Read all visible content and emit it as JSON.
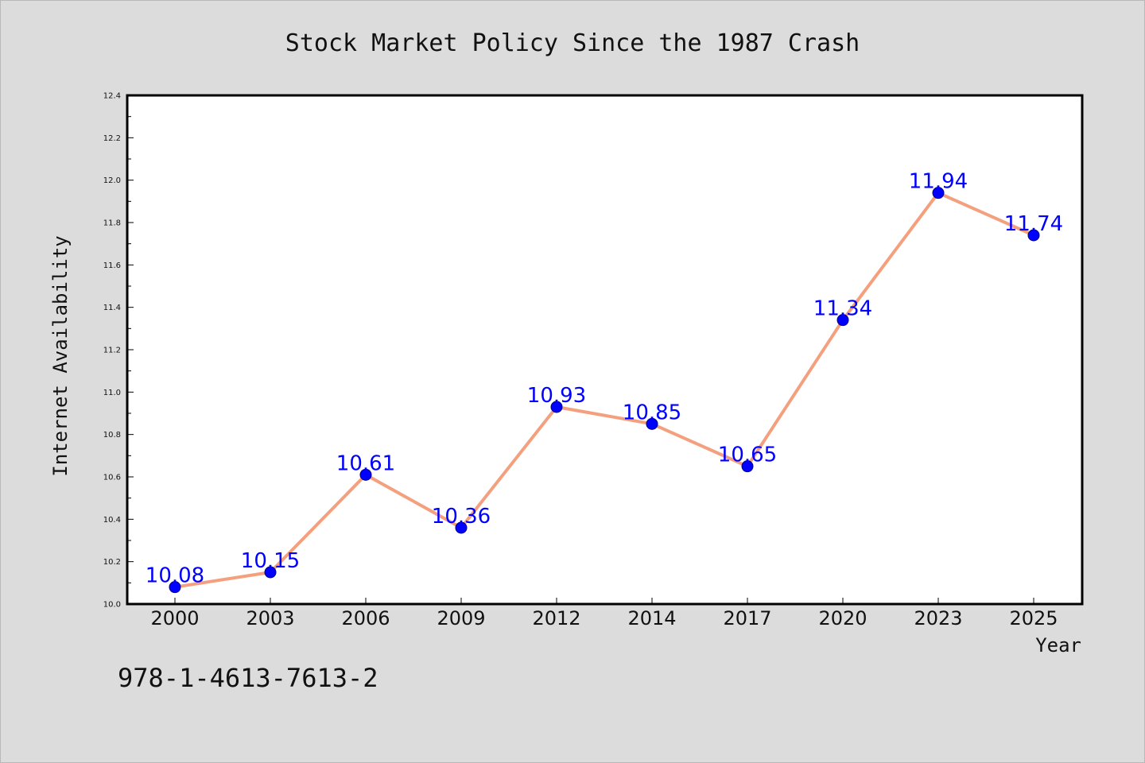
{
  "chart_data": {
    "type": "line",
    "title": "Stock Market Policy Since the 1987 Crash",
    "xlabel": "Year",
    "ylabel": "Internet Availability",
    "categories": [
      "2000",
      "2003",
      "2006",
      "2009",
      "2012",
      "2014",
      "2017",
      "2020",
      "2023",
      "2025"
    ],
    "series": [
      {
        "values": [
          10.08,
          10.15,
          10.61,
          10.36,
          10.93,
          10.85,
          10.65,
          11.34,
          11.94,
          11.74
        ]
      }
    ],
    "data_labels": [
      "10.08",
      "10.15",
      "10.61",
      "10.36",
      "10.93",
      "10.85",
      "10.65",
      "11.34",
      "11.94",
      "11.74"
    ],
    "ylim": [
      10.0,
      12.4
    ],
    "yticks": [
      "10.0",
      "10.2",
      "10.4",
      "10.6",
      "10.8",
      "11.0",
      "11.2",
      "11.4",
      "11.6",
      "11.8",
      "12.0",
      "12.2",
      "12.4"
    ],
    "grid": false,
    "legend": "none",
    "colors": {
      "line": "#f4a07e",
      "marker": "#0000ff",
      "label": "#0000ff",
      "background": "#dcdcdc",
      "plot_background": "#ffffff"
    }
  },
  "footer": {
    "isbn": "978-1-4613-7613-2"
  }
}
